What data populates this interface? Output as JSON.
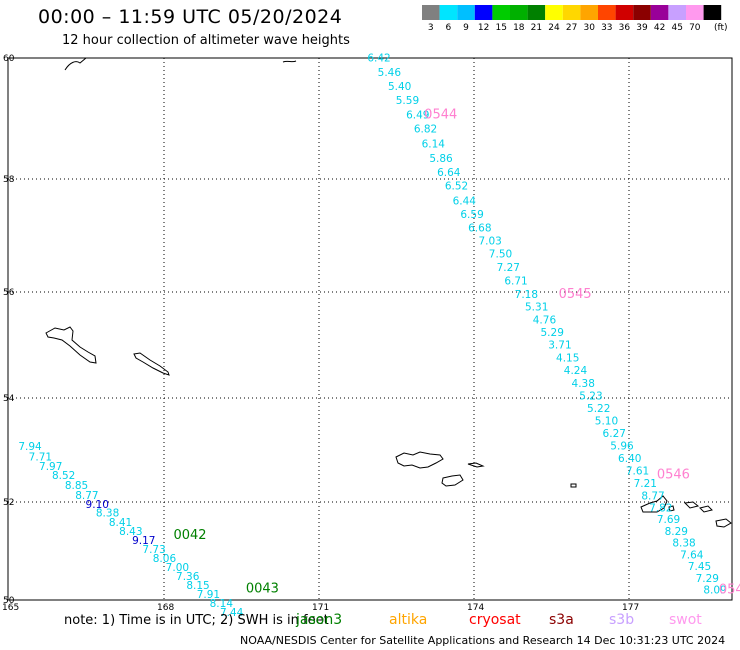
{
  "header": {
    "title": "00:00 – 11:59 UTC 05/20/2024",
    "subtitle": "12 hour collection of altimeter wave heights"
  },
  "legend": {
    "unit": "(ft)",
    "bins": [
      {
        "label": "3",
        "color": "#808080"
      },
      {
        "label": "6",
        "color": "#00e5ff"
      },
      {
        "label": "9",
        "color": "#00bfff"
      },
      {
        "label": "12",
        "color": "#0000ff"
      },
      {
        "label": "15",
        "color": "#00cc00"
      },
      {
        "label": "18",
        "color": "#00b000"
      },
      {
        "label": "21",
        "color": "#008000"
      },
      {
        "label": "24",
        "color": "#ffff00"
      },
      {
        "label": "27",
        "color": "#ffd700"
      },
      {
        "label": "30",
        "color": "#ffa500"
      },
      {
        "label": "33",
        "color": "#ff4500"
      },
      {
        "label": "36",
        "color": "#d00000"
      },
      {
        "label": "39",
        "color": "#8b0000"
      },
      {
        "label": "42",
        "color": "#990099"
      },
      {
        "label": "45",
        "color": "#c8a0ff"
      },
      {
        "label": "70",
        "color": "#ff99ee"
      },
      {
        "label": "",
        "color": "#000000"
      }
    ]
  },
  "axes": {
    "lat_ticks": [
      "60",
      "58",
      "56",
      "54",
      "52",
      "50"
    ],
    "lon_ticks": [
      "165",
      "168",
      "171",
      "174",
      "177"
    ],
    "lat_range": [
      50,
      60
    ],
    "lon_range": [
      165,
      178.7
    ]
  },
  "tracks": [
    {
      "color": "#00d0e8",
      "points": [
        {
          "label": "6.42",
          "lon": 171.95,
          "lat": 59.94
        },
        {
          "label": "5.46",
          "lon": 172.15,
          "lat": 59.7
        },
        {
          "label": "5.40",
          "lon": 172.35,
          "lat": 59.47
        },
        {
          "label": "5.59",
          "lon": 172.5,
          "lat": 59.24
        },
        {
          "label": "6.49",
          "lon": 172.7,
          "lat": 59.0
        },
        {
          "label": "6.82",
          "lon": 172.85,
          "lat": 58.77
        },
        {
          "label": "6.14",
          "lon": 173.0,
          "lat": 58.52
        },
        {
          "label": "5.86",
          "lon": 173.15,
          "lat": 58.28
        },
        {
          "label": "6.64",
          "lon": 173.3,
          "lat": 58.05
        },
        {
          "label": "6.52",
          "lon": 173.45,
          "lat": 57.81
        },
        {
          "label": "6.44",
          "lon": 173.6,
          "lat": 57.55
        },
        {
          "label": "6.59",
          "lon": 173.75,
          "lat": 57.31
        },
        {
          "label": "6.68",
          "lon": 173.9,
          "lat": 57.07
        },
        {
          "label": "7.03",
          "lon": 174.1,
          "lat": 56.84
        },
        {
          "label": "7.50",
          "lon": 174.3,
          "lat": 56.61
        },
        {
          "label": "7.27",
          "lon": 174.45,
          "lat": 56.37
        },
        {
          "label": "6.71",
          "lon": 174.6,
          "lat": 56.13
        },
        {
          "label": "7.18",
          "lon": 174.8,
          "lat": 55.89
        },
        {
          "label": "5.31",
          "lon": 175.0,
          "lat": 55.65
        },
        {
          "label": "4.76",
          "lon": 175.15,
          "lat": 55.41
        },
        {
          "label": "5.29",
          "lon": 175.3,
          "lat": 55.17
        },
        {
          "label": "3.71",
          "lon": 175.45,
          "lat": 54.93
        },
        {
          "label": "4.15",
          "lon": 175.6,
          "lat": 54.69
        },
        {
          "label": "4.24",
          "lon": 175.75,
          "lat": 54.45
        },
        {
          "label": "4.38",
          "lon": 175.9,
          "lat": 54.21
        },
        {
          "label": "5.23",
          "lon": 176.05,
          "lat": 53.97
        },
        {
          "label": "5.22",
          "lon": 176.2,
          "lat": 53.73
        },
        {
          "label": "5.10",
          "lon": 176.35,
          "lat": 53.49
        },
        {
          "label": "6.27",
          "lon": 176.5,
          "lat": 53.25
        },
        {
          "label": "5.96",
          "lon": 176.65,
          "lat": 53.01
        },
        {
          "label": "6.40",
          "lon": 176.8,
          "lat": 52.77
        },
        {
          "label": "7.61",
          "lon": 176.95,
          "lat": 52.53
        },
        {
          "label": "7.21",
          "lon": 177.1,
          "lat": 52.29
        },
        {
          "label": "8.77",
          "lon": 177.25,
          "lat": 52.05
        },
        {
          "label": "7.82",
          "lon": 177.4,
          "lat": 51.81
        },
        {
          "label": "7.69",
          "lon": 177.55,
          "lat": 51.57
        },
        {
          "label": "8.29",
          "lon": 177.7,
          "lat": 51.33
        },
        {
          "label": "8.38",
          "lon": 177.85,
          "lat": 51.09
        },
        {
          "label": "7.64",
          "lon": 178.0,
          "lat": 50.85
        },
        {
          "label": "7.45",
          "lon": 178.15,
          "lat": 50.61
        },
        {
          "label": "7.29",
          "lon": 178.3,
          "lat": 50.37
        },
        {
          "label": "8.09",
          "lon": 178.45,
          "lat": 50.13
        }
      ]
    },
    {
      "color": "#00d0e8",
      "points": [
        {
          "label": "7.94",
          "lon": 165.2,
          "lat": 53.0
        },
        {
          "label": "7.71",
          "lon": 165.4,
          "lat": 52.8
        },
        {
          "label": "7.97",
          "lon": 165.6,
          "lat": 52.62
        },
        {
          "label": "8.52",
          "lon": 165.85,
          "lat": 52.44
        },
        {
          "label": "8.85",
          "lon": 166.1,
          "lat": 52.25
        },
        {
          "label": "8.77",
          "lon": 166.3,
          "lat": 52.06
        },
        {
          "label": "9.10",
          "lon": 166.5,
          "lat": 51.88
        },
        {
          "label": "8.38",
          "lon": 166.7,
          "lat": 51.7
        },
        {
          "label": "8.41",
          "lon": 166.95,
          "lat": 51.51
        },
        {
          "label": "8.43",
          "lon": 167.15,
          "lat": 51.33
        },
        {
          "label": "9.17",
          "lon": 167.4,
          "lat": 51.14
        },
        {
          "label": "7.73",
          "lon": 167.6,
          "lat": 50.96
        },
        {
          "label": "8.06",
          "lon": 167.8,
          "lat": 50.78
        },
        {
          "label": "7.00",
          "lon": 168.05,
          "lat": 50.59
        },
        {
          "label": "7.36",
          "lon": 168.25,
          "lat": 50.41
        },
        {
          "label": "8.15",
          "lon": 168.45,
          "lat": 50.22
        },
        {
          "label": "7.91",
          "lon": 168.65,
          "lat": 50.04
        },
        {
          "label": "8.14",
          "lon": 168.9,
          "lat": 49.86
        },
        {
          "label": "7.44",
          "lon": 169.1,
          "lat": 49.68
        }
      ]
    }
  ],
  "pass_labels": [
    {
      "label": "0544",
      "color": "#ff80d0",
      "lon": 173.05,
      "lat": 59.0
    },
    {
      "label": "0545",
      "color": "#ff80d0",
      "lon": 175.65,
      "lat": 55.89
    },
    {
      "label": "0546",
      "color": "#ff80d0",
      "lon": 177.55,
      "lat": 52.45
    },
    {
      "label": "054",
      "color": "#ff80d0",
      "lon": 178.75,
      "lat": 50.13
    },
    {
      "label": "0042",
      "color": "#008000",
      "lon": 168.2,
      "lat": 51.25
    },
    {
      "label": "0043",
      "color": "#008000",
      "lon": 169.6,
      "lat": 50.15
    }
  ],
  "note": "note:  1) Time is in UTC; 2) SWH is in feet",
  "satellites": [
    {
      "name": "jason3",
      "color": "#008000"
    },
    {
      "name": "altika",
      "color": "#ffa500"
    },
    {
      "name": "cryosat",
      "color": "#ff0000"
    },
    {
      "name": "s3a",
      "color": "#8b0000"
    },
    {
      "name": "s3b",
      "color": "#c8a0ff"
    },
    {
      "name": "swot",
      "color": "#ff99ee"
    }
  ],
  "footer": "NOAA/NESDIS Center for Satellite Applications and Research    14 Dec 10:31:23 UTC 2024"
}
